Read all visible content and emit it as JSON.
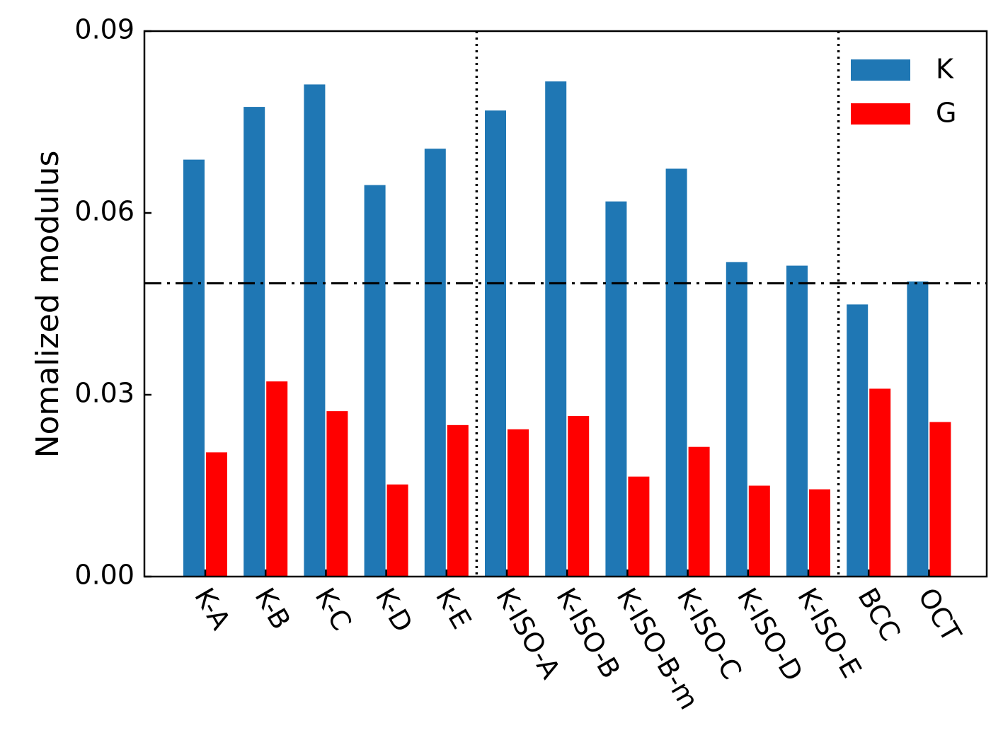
{
  "chart_data": {
    "type": "bar",
    "title": "",
    "xlabel": "",
    "ylabel": "Nomalized modulus",
    "ylim": [
      0,
      0.09
    ],
    "yticks": [
      "0.00",
      "0.03",
      "0.06",
      "0.09"
    ],
    "categories": [
      "K-A",
      "K-B",
      "K-C",
      "K-D",
      "K-E",
      "K-ISO-A",
      "K-ISO-B",
      "K-ISO-B-m",
      "K-ISO-C",
      "K-ISO-D",
      "K-ISO-E",
      "BCC",
      "OCT"
    ],
    "series": [
      {
        "name": "K",
        "color": "#1f77b4",
        "values": [
          0.0688,
          0.0775,
          0.0812,
          0.0646,
          0.0706,
          0.0769,
          0.0817,
          0.0619,
          0.0673,
          0.0519,
          0.0513,
          0.0449,
          0.0487
        ]
      },
      {
        "name": "G",
        "color": "#ff0000",
        "values": [
          0.0205,
          0.0322,
          0.0273,
          0.0152,
          0.025,
          0.0243,
          0.0265,
          0.0165,
          0.0214,
          0.015,
          0.0144,
          0.031,
          0.0255
        ]
      }
    ],
    "reference_line": {
      "value": 0.0484,
      "style": "dash-dot",
      "color": "#000000"
    },
    "group_dividers": {
      "after_categories": [
        "K-E",
        "K-ISO-E"
      ],
      "style": "dotted"
    },
    "legend": {
      "position": "top-right"
    },
    "grid": false
  }
}
